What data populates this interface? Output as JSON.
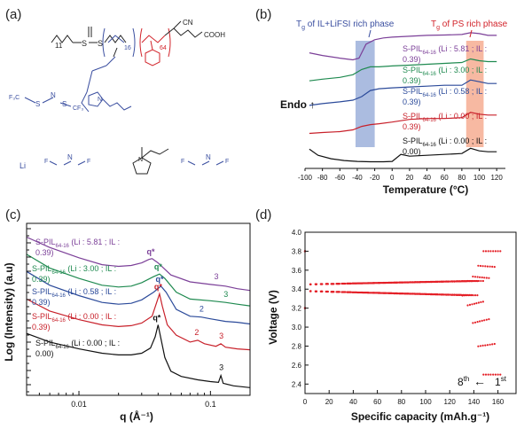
{
  "panels": {
    "a": {
      "label": "(a)"
    },
    "b": {
      "label": "(b)"
    },
    "c": {
      "label": "(c)"
    },
    "d": {
      "label": "(d)"
    }
  },
  "structures": {
    "polymer_x": "11",
    "polymer_y": "16",
    "polymer_z": "64",
    "cn": "CN",
    "cooh": "COOH",
    "s1": "S",
    "s2": "S",
    "tfsi_n": "N",
    "tfsi_cf3": "F₃C",
    "tfsi_cf3b": "CF₃",
    "li": "Li",
    "fsi_n": "N",
    "fsi_f1": "F",
    "fsi_f2": "F",
    "il_n": "N",
    "fsi2_n": "N",
    "fsi2_f1": "F",
    "fsi2_f2": "F",
    "sulfonyl": "S",
    "oxygen": "O"
  },
  "chart_data": [
    {
      "panel": "b",
      "type": "line",
      "title": "",
      "xlabel": "Temperature (°C)",
      "ylabel": "Endo ↑",
      "xlim": [
        -100,
        130
      ],
      "xticks": [
        -100,
        -80,
        -60,
        -40,
        -20,
        0,
        20,
        40,
        60,
        80,
        100,
        120
      ],
      "annotations": {
        "tg_il": "T",
        "tg_il_sub": "g",
        "tg_il_rest": " of IL+LiFSI rich phase",
        "tg_ps": "T",
        "tg_ps_sub": "g",
        "tg_ps_rest": " of PS rich phase"
      },
      "bands": [
        {
          "name": "IL+LiFSI rich phase",
          "from": -42,
          "to": -20,
          "color": "#8fa6d6"
        },
        {
          "name": "PS rich phase",
          "from": 85,
          "to": 105,
          "color": "#f4a183"
        }
      ],
      "series": [
        {
          "name": "S-PIL64-16 (Li : 5.81 ; IL : 0.39)",
          "line1": "S-PIL",
          "sub": "64-16",
          "line1b": " (Li : 5.81 ; IL :",
          "line2": "0.39)",
          "color": "#7b3f98",
          "x": [
            -95,
            -80,
            -60,
            -45,
            -38,
            -30,
            -20,
            -10,
            0,
            20,
            40,
            60,
            80,
            90,
            100,
            110,
            120
          ],
          "y": [
            6.1,
            5.95,
            5.8,
            5.7,
            5.8,
            6.6,
            6.85,
            6.95,
            7.0,
            7.05,
            7.1,
            7.12,
            7.15,
            7.25,
            7.2,
            7.1,
            7.1
          ]
        },
        {
          "name": "S-PIL64-16 (Li : 3.00 ; IL : 0.39)",
          "line1": "S-PIL",
          "sub": "64-16",
          "line1b": " (Li : 3.00 ; IL :",
          "line2": "0.39)",
          "color": "#1f8a50",
          "x": [
            -95,
            -80,
            -60,
            -45,
            -35,
            -25,
            -15,
            0,
            20,
            40,
            60,
            80,
            90,
            100,
            110,
            120
          ],
          "y": [
            4.5,
            4.6,
            4.7,
            4.85,
            5.15,
            5.3,
            5.3,
            5.35,
            5.4,
            5.45,
            5.5,
            5.55,
            5.75,
            5.65,
            5.6,
            5.6
          ]
        },
        {
          "name": "S-PIL64-16 (Li : 0.58 ; IL : 0.39)",
          "line1": "S-PIL",
          "sub": "64-16",
          "line1b": " (Li : 0.58 ; IL :",
          "line2": "0.39)",
          "color": "#2b4a9a",
          "x": [
            -95,
            -80,
            -60,
            -45,
            -35,
            -25,
            -15,
            0,
            20,
            40,
            60,
            80,
            90,
            100,
            110,
            120
          ],
          "y": [
            3.1,
            3.2,
            3.3,
            3.4,
            3.6,
            3.95,
            4.05,
            4.1,
            4.15,
            4.2,
            4.25,
            4.25,
            4.55,
            4.45,
            4.35,
            4.35
          ]
        },
        {
          "name": "S-PIL64-16 (Li : 0.00 ; IL : 0.39)",
          "line1": "S-PIL",
          "sub": "64-16",
          "line1b": " (Li : 0.00 ; IL :",
          "line2": "0.39)",
          "color": "#c8202a",
          "x": [
            -95,
            -80,
            -60,
            -45,
            -35,
            -25,
            -15,
            0,
            20,
            40,
            60,
            80,
            90,
            100,
            110,
            120
          ],
          "y": [
            1.5,
            1.55,
            1.6,
            1.7,
            1.9,
            2.0,
            2.05,
            2.15,
            2.3,
            2.35,
            2.35,
            2.4,
            2.7,
            2.6,
            2.55,
            2.55
          ]
        },
        {
          "name": "S-PIL64-16 (Li : 0.00 ; IL : 0.00)",
          "line1": "S-PIL",
          "sub": "64-16",
          "line1b": " (Li : 0.00 ; IL :",
          "line2": "0.00)",
          "color": "#111111",
          "x": [
            -95,
            -85,
            -70,
            -55,
            -40,
            -25,
            -10,
            0,
            10,
            20,
            40,
            60,
            80,
            90,
            100,
            110,
            120
          ],
          "y": [
            0.6,
            0.25,
            0.05,
            -0.05,
            -0.1,
            -0.12,
            -0.12,
            -0.1,
            0.3,
            0.2,
            0.25,
            0.3,
            0.35,
            0.65,
            0.5,
            0.45,
            0.45
          ]
        }
      ]
    },
    {
      "panel": "c",
      "type": "line",
      "title": "",
      "xlabel": "q (Å⁻¹)",
      "ylabel": "Log (Intensity) (a.u)",
      "xscale": "log",
      "xlim": [
        0.004,
        0.2
      ],
      "xticks": [
        0.01,
        0.1
      ],
      "xtick_labels": [
        "0.01",
        "0.1"
      ],
      "peak_label": "q*",
      "series": [
        {
          "name": "S-PIL64-16 (Li : 5.81 ; IL : 0.39)",
          "line1": "S-PIL",
          "sub": "64-16",
          "line1b": " (Li : 5.81 ; IL :",
          "line2": "0.39)",
          "color": "#7b3f98",
          "peak_q": 0.036,
          "order_labels": [
            "3"
          ],
          "order_q": [
            0.11
          ],
          "x": [
            0.004,
            0.006,
            0.01,
            0.015,
            0.02,
            0.025,
            0.03,
            0.034,
            0.036,
            0.04,
            0.05,
            0.07,
            0.1,
            0.13,
            0.16,
            0.2
          ],
          "y": [
            9.2,
            8.6,
            8.0,
            7.6,
            7.5,
            7.55,
            7.7,
            7.9,
            7.95,
            7.7,
            7.0,
            6.6,
            6.45,
            6.35,
            6.2,
            6.1
          ]
        },
        {
          "name": "S-PIL64-16 (Li : 3.00 ; IL : 0.39)",
          "line1": "S-PIL",
          "sub": "64-16",
          "line1b": " (Li : 3.00 ; IL :",
          "line2": "0.39)",
          "line3": ": 0.39)",
          "color": "#1f8a50",
          "peak_q": 0.041,
          "order_labels": [
            "3"
          ],
          "order_q": [
            0.13
          ],
          "x": [
            0.004,
            0.006,
            0.01,
            0.015,
            0.02,
            0.025,
            0.03,
            0.037,
            0.041,
            0.045,
            0.055,
            0.07,
            0.1,
            0.13,
            0.16,
            0.2
          ],
          "y": [
            8.2,
            7.4,
            6.8,
            6.4,
            6.3,
            6.35,
            6.55,
            6.9,
            7.05,
            6.8,
            6.0,
            5.6,
            5.5,
            5.4,
            5.3,
            5.2
          ]
        },
        {
          "name": "S-PIL64-16 (Li : 0.58 ; IL : 0.39)",
          "line1": "S-PIL",
          "sub": "64-16",
          "line1b": " (Li : 0.58 ; IL :",
          "line2": "0.39)",
          "color": "#2b4a9a",
          "peak_q": 0.042,
          "order_labels": [
            "2"
          ],
          "order_q": [
            0.085
          ],
          "x": [
            0.004,
            0.006,
            0.01,
            0.015,
            0.02,
            0.025,
            0.03,
            0.037,
            0.042,
            0.046,
            0.055,
            0.07,
            0.085,
            0.1,
            0.13,
            0.16,
            0.2
          ],
          "y": [
            7.2,
            6.4,
            5.8,
            5.4,
            5.3,
            5.35,
            5.55,
            6.0,
            6.35,
            6.0,
            5.0,
            4.6,
            4.55,
            4.45,
            4.3,
            4.25,
            4.15
          ]
        },
        {
          "name": "S-PIL64-16 (Li : 0.00 ; IL : 0.39)",
          "line1": "S-PIL",
          "sub": "64-16",
          "line1b": " (Li : 0.00 ; IL :",
          "line2": "0.39)",
          "color": "#c8202a",
          "peak_q": 0.041,
          "order_labels": [
            "2",
            "3"
          ],
          "order_q": [
            0.078,
            0.12
          ],
          "x": [
            0.004,
            0.006,
            0.01,
            0.015,
            0.02,
            0.025,
            0.03,
            0.036,
            0.039,
            0.041,
            0.043,
            0.047,
            0.055,
            0.07,
            0.08,
            0.09,
            0.11,
            0.12,
            0.13,
            0.16,
            0.2
          ],
          "y": [
            5.6,
            4.9,
            4.4,
            4.1,
            4.0,
            4.05,
            4.2,
            4.6,
            5.4,
            5.9,
            5.2,
            4.1,
            3.5,
            3.1,
            3.2,
            3.0,
            2.85,
            3.0,
            2.8,
            2.7,
            2.65
          ]
        },
        {
          "name": "S-PIL64-16 (Li : 0.00 ; IL : 0.00)",
          "line1": "S-PIL",
          "sub": "64-16",
          "line1b": " (Li : 0.00 ; IL :",
          "line2": "0.00)",
          "color": "#111111",
          "peak_q": 0.04,
          "order_labels": [
            "3"
          ],
          "order_q": [
            0.12
          ],
          "x": [
            0.004,
            0.006,
            0.01,
            0.015,
            0.02,
            0.025,
            0.03,
            0.035,
            0.038,
            0.04,
            0.042,
            0.045,
            0.05,
            0.06,
            0.08,
            0.1,
            0.115,
            0.12,
            0.125,
            0.15,
            0.2
          ],
          "y": [
            3.6,
            3.1,
            2.7,
            2.45,
            2.35,
            2.35,
            2.45,
            2.75,
            3.4,
            4.1,
            3.3,
            2.2,
            1.4,
            1.1,
            0.9,
            0.8,
            0.75,
            1.15,
            0.7,
            0.55,
            0.45
          ]
        }
      ]
    },
    {
      "panel": "d",
      "type": "scatter",
      "title": "",
      "xlabel": "Specific capacity (mAh.g⁻¹)",
      "ylabel": "Voltage (V)",
      "xlim": [
        0,
        175
      ],
      "ylim": [
        2.3,
        4.0
      ],
      "xticks": [
        0,
        20,
        40,
        60,
        80,
        100,
        120,
        140,
        160
      ],
      "yticks": [
        2.4,
        2.6,
        2.8,
        3.0,
        3.2,
        3.4,
        3.6,
        3.8,
        4.0
      ],
      "yticks_labels": [
        "2.4",
        "2.6",
        "2.8",
        "3.0",
        "3.2",
        "3.4",
        "3.6",
        "3.8",
        "4.0"
      ],
      "cycle_first_label": "1",
      "cycle_first_sup": "st",
      "cycle_last_label": "8",
      "cycle_last_sup": "th",
      "arrow": "←",
      "color": "#e41f26",
      "cycles": 8,
      "charge_plateau_V": 3.45,
      "discharge_plateau_V": 3.38,
      "max_capacity_first": 162,
      "max_capacity_last": 148,
      "upper_cutoff_V": 3.8,
      "lower_cutoff_V": 2.5
    }
  ]
}
